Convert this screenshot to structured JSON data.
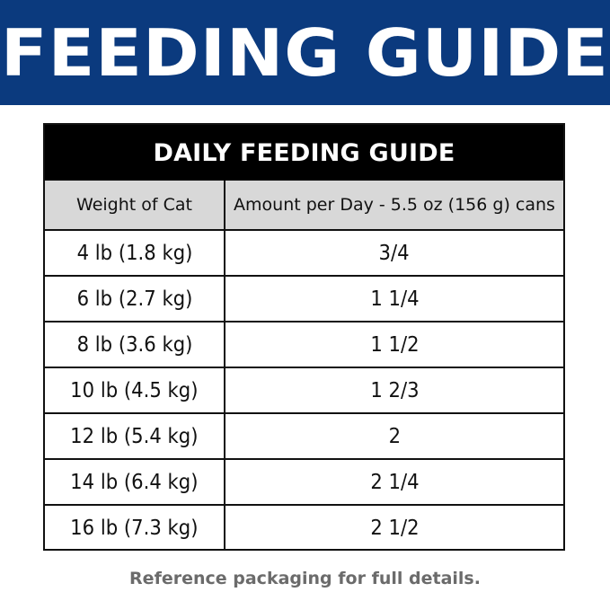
{
  "banner": {
    "title": "FEEDING GUIDE"
  },
  "table": {
    "heading": "DAILY FEEDING GUIDE",
    "columns": [
      "Weight of Cat",
      "Amount per Day - 5.5 oz (156 g) cans"
    ],
    "rows": [
      {
        "weight": "4 lb (1.8 kg)",
        "amount": "3/4"
      },
      {
        "weight": "6 lb (2.7 kg)",
        "amount": "1 1/4"
      },
      {
        "weight": "8 lb (3.6 kg)",
        "amount": "1 1/2"
      },
      {
        "weight": "10 lb (4.5 kg)",
        "amount": "1 2/3"
      },
      {
        "weight": "12 lb (5.4 kg)",
        "amount": "2"
      },
      {
        "weight": "14 lb (6.4 kg)",
        "amount": "2 1/4"
      },
      {
        "weight": "16 lb (7.3 kg)",
        "amount": "2 1/2"
      }
    ]
  },
  "footer": {
    "note": "Reference packaging for full details."
  },
  "colors": {
    "banner": "#0b3a7e",
    "header_bg": "#000000",
    "col_header_bg": "#d8d8d8",
    "footer_text": "#6b6b6b"
  }
}
